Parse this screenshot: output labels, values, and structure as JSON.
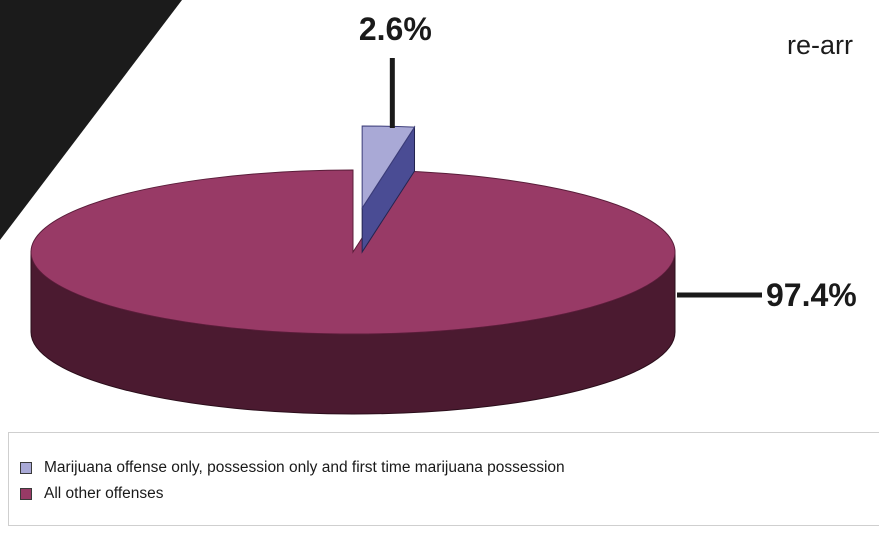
{
  "header": {
    "fragment_text": "re-arr"
  },
  "chart_data": {
    "type": "pie",
    "title": "",
    "slices": [
      {
        "label": "Marijuana offense only, possession only and first time marijuana possession",
        "value": 2.6,
        "display": "2.6%",
        "color": "#a9a9d6",
        "side_color": "#4a4c94"
      },
      {
        "label": "All other offenses",
        "value": 97.4,
        "display": "97.4%",
        "color": "#983a66",
        "side_color": "#4b1a30"
      }
    ],
    "legend_position": "bottom",
    "style": "3d-exploded"
  }
}
